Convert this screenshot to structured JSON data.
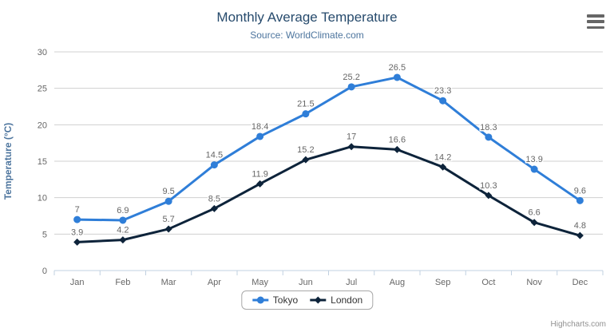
{
  "chart": {
    "title": "Monthly Average Temperature",
    "subtitle": "Source: WorldClimate.com",
    "credits": "Highcharts.com",
    "menu_icon": "hamburger-menu"
  },
  "colors": {
    "title": "#274b6d",
    "subtitle": "#4d759e",
    "axis_title": "#4d759e",
    "axis_labels": "#666666",
    "grid_line": "#d0d0d0",
    "axis_line": "#c0d0e0",
    "data_label": "#666666",
    "legend_text": "#333333",
    "legend_border": "#a8a8a8",
    "tokyo": "#2f7ed8",
    "london": "#0d233a"
  },
  "chart_data": {
    "type": "line",
    "title": "Monthly Average Temperature",
    "subtitle": "Source: WorldClimate.com",
    "xlabel": "",
    "ylabel": "Temperature (°C)",
    "ylim": [
      0,
      30
    ],
    "y_ticks": [
      0,
      5,
      10,
      15,
      20,
      25,
      30
    ],
    "grid": "horizontal",
    "legend_position": "bottom",
    "data_labels": true,
    "categories": [
      "Jan",
      "Feb",
      "Mar",
      "Apr",
      "May",
      "Jun",
      "Jul",
      "Aug",
      "Sep",
      "Oct",
      "Nov",
      "Dec"
    ],
    "series": [
      {
        "name": "Tokyo",
        "color": "#2f7ed8",
        "marker": "circle",
        "values": [
          7,
          6.9,
          9.5,
          14.5,
          18.4,
          21.5,
          25.2,
          26.5,
          23.3,
          18.3,
          13.9,
          9.6
        ]
      },
      {
        "name": "London",
        "color": "#0d233a",
        "marker": "diamond",
        "values": [
          3.9,
          4.2,
          5.7,
          8.5,
          11.9,
          15.2,
          17,
          16.6,
          14.2,
          10.3,
          6.6,
          4.8
        ]
      }
    ]
  }
}
